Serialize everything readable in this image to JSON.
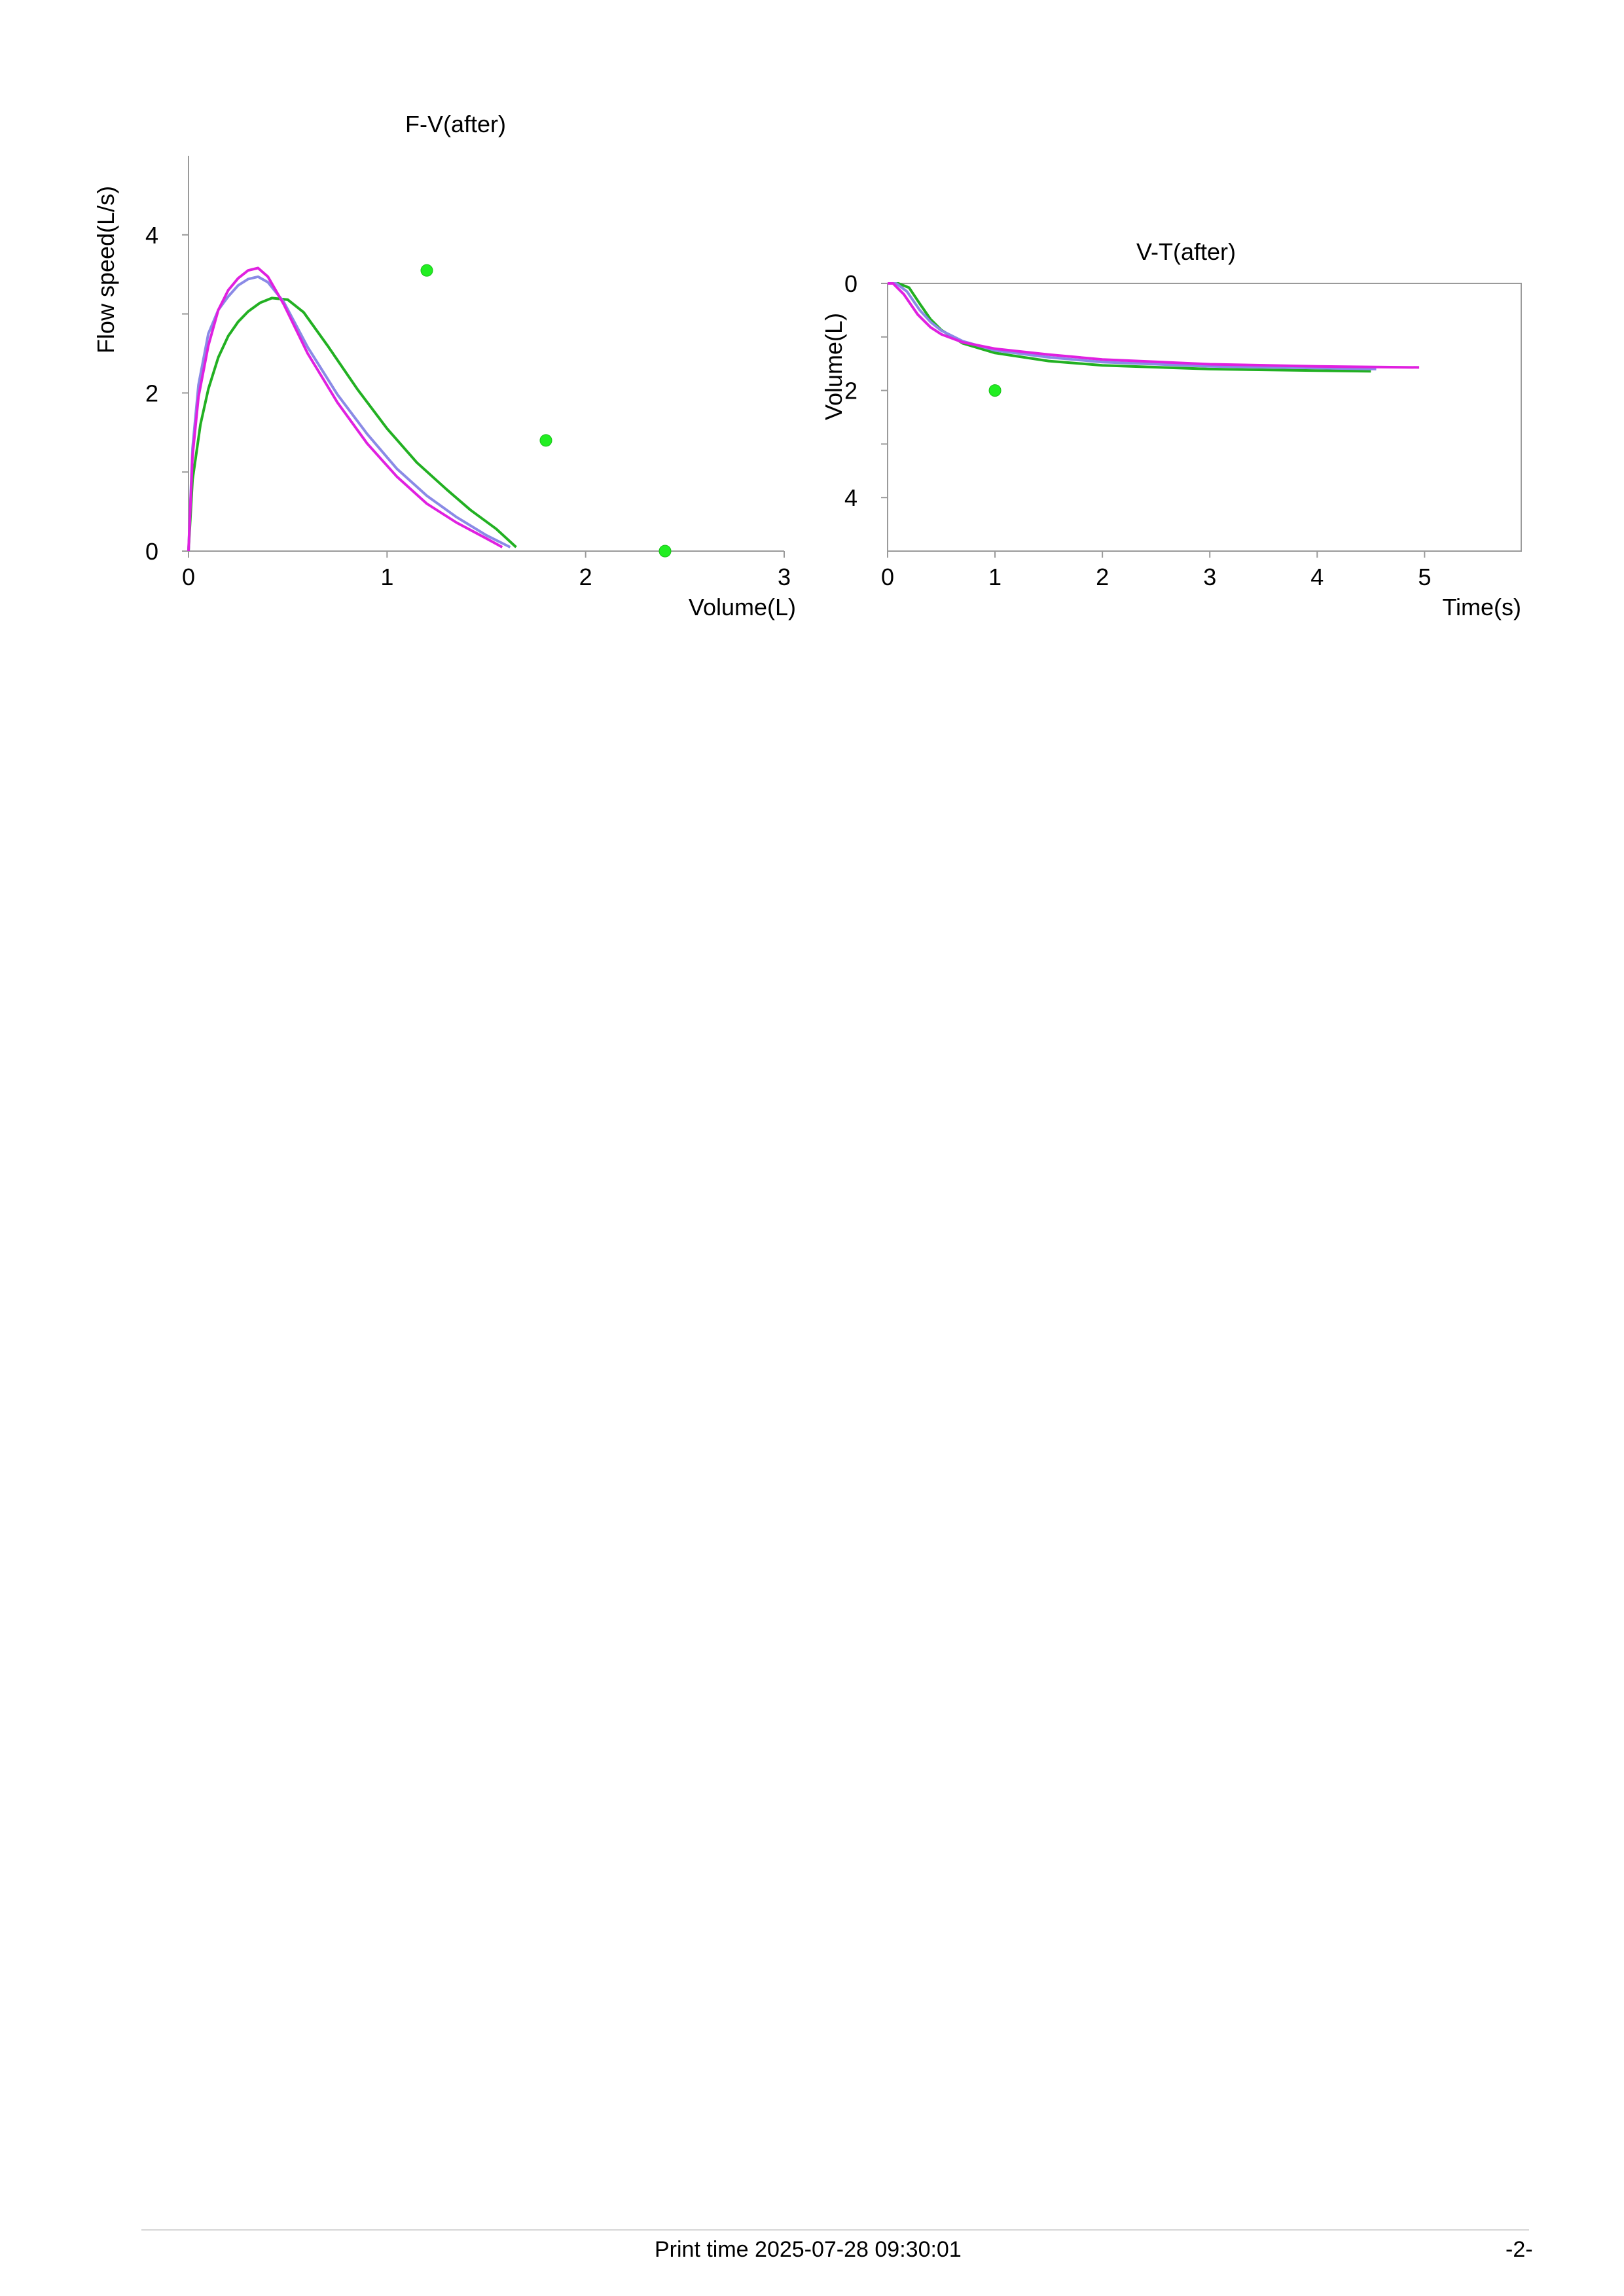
{
  "chart_data": [
    {
      "type": "line",
      "title": "F-V(after)",
      "xlabel": "Volume(L)",
      "ylabel": "Flow speed(L/s)",
      "xlim": [
        0,
        3
      ],
      "ylim": [
        0,
        5
      ],
      "xticks": [
        "0",
        "1",
        "2",
        "3"
      ],
      "yticks": [
        "0",
        "2",
        "4"
      ],
      "grid": false,
      "series": [
        {
          "color": "#22b022",
          "points": [
            [
              0,
              0
            ],
            [
              0.02,
              0.9
            ],
            [
              0.06,
              1.6
            ],
            [
              0.1,
              2.05
            ],
            [
              0.15,
              2.45
            ],
            [
              0.2,
              2.72
            ],
            [
              0.25,
              2.9
            ],
            [
              0.3,
              3.03
            ],
            [
              0.36,
              3.14
            ],
            [
              0.42,
              3.2
            ],
            [
              0.5,
              3.18
            ],
            [
              0.58,
              3.02
            ],
            [
              0.7,
              2.6
            ],
            [
              0.85,
              2.05
            ],
            [
              1.0,
              1.55
            ],
            [
              1.15,
              1.12
            ],
            [
              1.3,
              0.78
            ],
            [
              1.42,
              0.52
            ],
            [
              1.55,
              0.28
            ],
            [
              1.65,
              0.05
            ]
          ]
        },
        {
          "color": "#8a8ae6",
          "points": [
            [
              0,
              0
            ],
            [
              0.02,
              1.3
            ],
            [
              0.05,
              2.1
            ],
            [
              0.1,
              2.75
            ],
            [
              0.15,
              3.05
            ],
            [
              0.2,
              3.22
            ],
            [
              0.25,
              3.36
            ],
            [
              0.3,
              3.44
            ],
            [
              0.35,
              3.47
            ],
            [
              0.4,
              3.4
            ],
            [
              0.48,
              3.15
            ],
            [
              0.6,
              2.58
            ],
            [
              0.75,
              1.98
            ],
            [
              0.9,
              1.48
            ],
            [
              1.05,
              1.04
            ],
            [
              1.2,
              0.7
            ],
            [
              1.35,
              0.43
            ],
            [
              1.5,
              0.2
            ],
            [
              1.62,
              0.05
            ]
          ]
        },
        {
          "color": "#e020e0",
          "points": [
            [
              0,
              0
            ],
            [
              0.02,
              1.2
            ],
            [
              0.05,
              1.95
            ],
            [
              0.1,
              2.6
            ],
            [
              0.15,
              3.05
            ],
            [
              0.2,
              3.3
            ],
            [
              0.25,
              3.45
            ],
            [
              0.3,
              3.55
            ],
            [
              0.35,
              3.58
            ],
            [
              0.4,
              3.47
            ],
            [
              0.48,
              3.12
            ],
            [
              0.6,
              2.5
            ],
            [
              0.75,
              1.88
            ],
            [
              0.9,
              1.36
            ],
            [
              1.05,
              0.94
            ],
            [
              1.2,
              0.6
            ],
            [
              1.35,
              0.36
            ],
            [
              1.5,
              0.16
            ],
            [
              1.58,
              0.05
            ]
          ]
        },
        {
          "color": "#22ee22",
          "style": "markers",
          "points": [
            [
              1.2,
              3.55
            ],
            [
              1.8,
              1.4
            ],
            [
              2.4,
              0
            ]
          ]
        }
      ]
    },
    {
      "type": "line",
      "title": "V-T(after)",
      "xlabel": "Time(s)",
      "ylabel": "Volume(L)",
      "xlim": [
        0,
        5.9
      ],
      "ylim": [
        0,
        5
      ],
      "y_inverted": true,
      "xticks": [
        "0",
        "1",
        "2",
        "3",
        "4",
        "5"
      ],
      "yticks": [
        "0",
        "2",
        "4"
      ],
      "grid": false,
      "series": [
        {
          "color": "#22b022",
          "points": [
            [
              0,
              0
            ],
            [
              0.1,
              0
            ],
            [
              0.2,
              0.08
            ],
            [
              0.3,
              0.38
            ],
            [
              0.4,
              0.67
            ],
            [
              0.5,
              0.87
            ],
            [
              0.7,
              1.12
            ],
            [
              1.0,
              1.3
            ],
            [
              1.5,
              1.45
            ],
            [
              2.0,
              1.53
            ],
            [
              3.0,
              1.6
            ],
            [
              4.0,
              1.63
            ],
            [
              4.5,
              1.64
            ]
          ]
        },
        {
          "color": "#8a8ae6",
          "points": [
            [
              0,
              0
            ],
            [
              0.08,
              0
            ],
            [
              0.18,
              0.15
            ],
            [
              0.3,
              0.5
            ],
            [
              0.4,
              0.72
            ],
            [
              0.5,
              0.88
            ],
            [
              0.7,
              1.08
            ],
            [
              1.0,
              1.25
            ],
            [
              1.5,
              1.38
            ],
            [
              2.0,
              1.47
            ],
            [
              3.0,
              1.55
            ],
            [
              4.0,
              1.58
            ],
            [
              4.55,
              1.6
            ]
          ]
        },
        {
          "color": "#e020e0",
          "points": [
            [
              0,
              0
            ],
            [
              0.05,
              0
            ],
            [
              0.15,
              0.2
            ],
            [
              0.28,
              0.58
            ],
            [
              0.4,
              0.82
            ],
            [
              0.5,
              0.95
            ],
            [
              0.7,
              1.1
            ],
            [
              1.0,
              1.22
            ],
            [
              1.5,
              1.33
            ],
            [
              2.0,
              1.42
            ],
            [
              3.0,
              1.51
            ],
            [
              4.0,
              1.55
            ],
            [
              4.95,
              1.57
            ]
          ]
        },
        {
          "color": "#22ee22",
          "style": "markers",
          "points": [
            [
              1.0,
              2.0
            ]
          ]
        }
      ]
    }
  ],
  "footer": {
    "print_time": "Print time 2025-07-28 09:30:01",
    "page_number": "-2-"
  }
}
